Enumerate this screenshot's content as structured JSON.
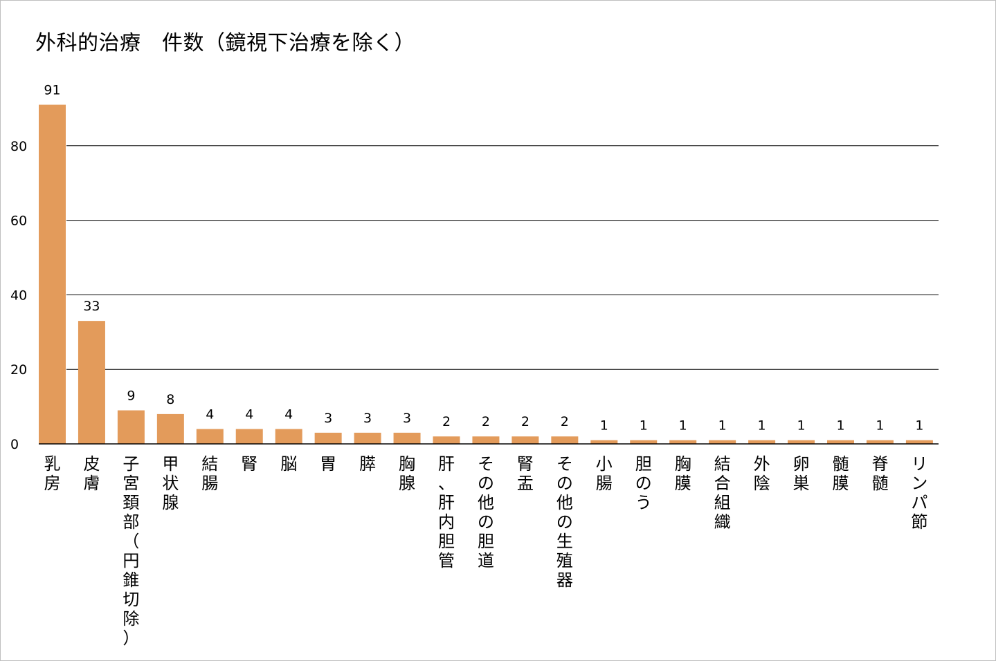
{
  "chart_data": {
    "type": "bar",
    "title": "外科的治療　件数（鏡視下治療を除く）",
    "xlabel": "",
    "ylabel": "",
    "ylim": [
      0,
      91
    ],
    "yticks": [
      0,
      20,
      40,
      60,
      80
    ],
    "grid": true,
    "legend": "none",
    "bar_color": "#e39b5b",
    "categories": [
      "乳房",
      "皮膚",
      "子宮頚部（円錐切除）",
      "甲状腺",
      "結腸",
      "腎",
      "脳",
      "胃",
      "膵",
      "胸腺",
      "肝、肝内胆管",
      "その他の胆道",
      "腎盂",
      "その他の生殖器",
      "小腸",
      "胆のう",
      "胸膜",
      "結合組織",
      "外陰",
      "卵巣",
      "髄膜",
      "脊髄",
      "リンパ節"
    ],
    "values": [
      91,
      33,
      9,
      8,
      4,
      4,
      4,
      3,
      3,
      3,
      2,
      2,
      2,
      2,
      1,
      1,
      1,
      1,
      1,
      1,
      1,
      1,
      1
    ]
  }
}
